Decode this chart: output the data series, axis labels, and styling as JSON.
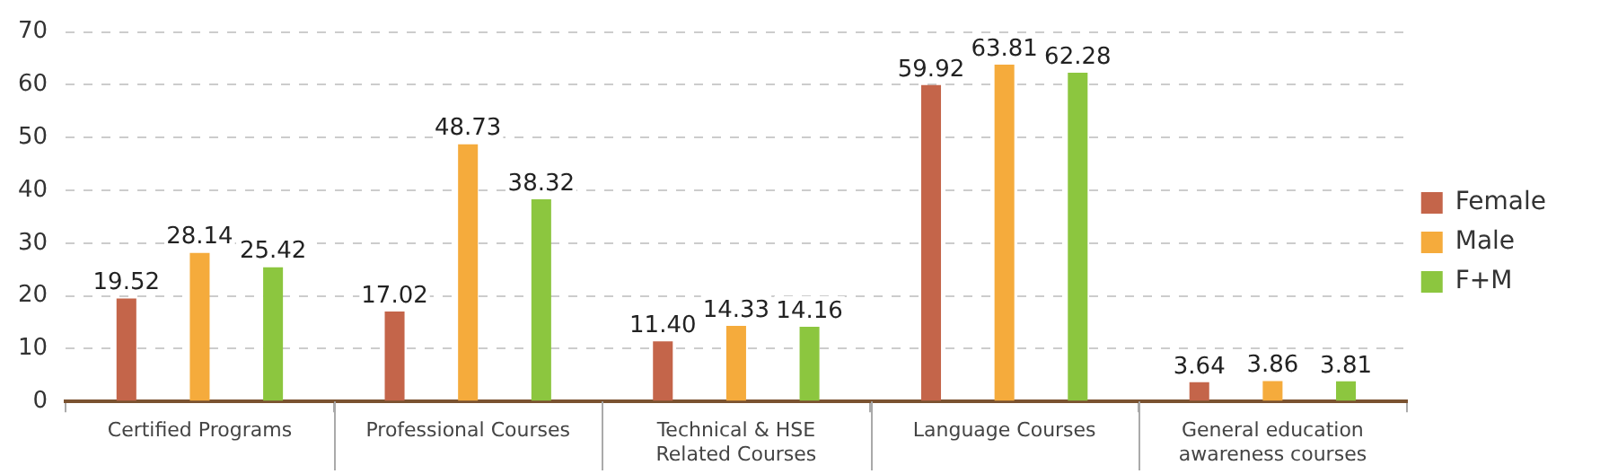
{
  "chart_data": {
    "type": "bar",
    "categories": [
      "Certified Programs",
      "Professional Courses",
      "Technical & HSE Related Courses",
      "Language Courses",
      "General education awareness courses"
    ],
    "series": [
      {
        "name": "Female",
        "color": "#c4654a",
        "values": [
          19.52,
          17.02,
          11.4,
          59.92,
          3.64
        ]
      },
      {
        "name": "Male",
        "color": "#f5ab3c",
        "values": [
          28.14,
          48.73,
          14.33,
          63.81,
          3.86
        ]
      },
      {
        "name": "F+M",
        "color": "#8cc63f",
        "values": [
          25.42,
          38.32,
          14.16,
          62.28,
          3.81
        ]
      }
    ],
    "value_labels": [
      [
        "19.52",
        "17.02",
        "11.40",
        "59.92",
        "3.64"
      ],
      [
        "28.14",
        "48.73",
        "14.33",
        "63.81",
        "3.86"
      ],
      [
        "25.42",
        "38.32",
        "14.16",
        "62.28",
        "3.81"
      ]
    ],
    "ylim": [
      0,
      70
    ],
    "yticks": [
      0,
      10,
      20,
      30,
      40,
      50,
      60,
      70
    ],
    "grid": "y",
    "legend": "right"
  }
}
